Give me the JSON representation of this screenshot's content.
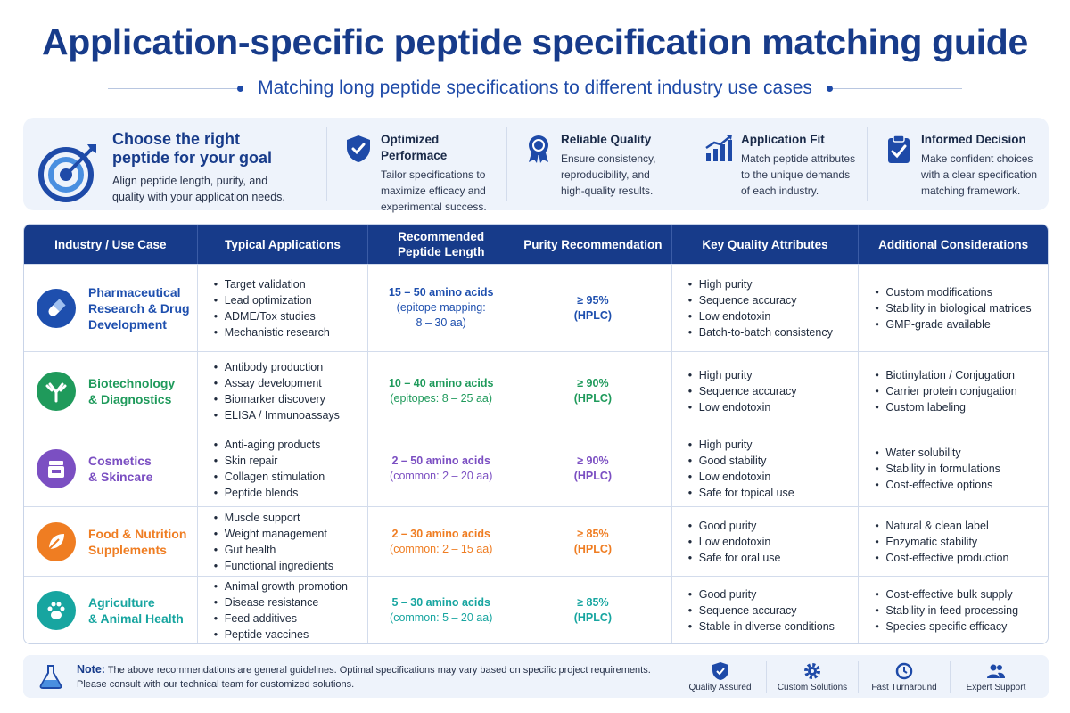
{
  "header": {
    "title": "Application-specific peptide specification matching guide",
    "subtitle": "Matching long peptide specifications to different industry use cases"
  },
  "intro": {
    "title_line1": "Choose the right",
    "title_line2": "peptide for your goal",
    "description_line1": "Align peptide length, purity, and",
    "description_line2": "quality with your application needs.",
    "icon": "target-icon",
    "features": [
      {
        "title": "Optimized Performace",
        "lines": [
          "Tailor specifications to",
          "maximize efficacy and",
          "experimental success."
        ],
        "icon": "shield-icon"
      },
      {
        "title": "Reliable Quality",
        "lines": [
          "Ensure consistency,",
          "reproducibility, and",
          "high-quality results."
        ],
        "icon": "award-ribbon-icon"
      },
      {
        "title": "Application Fit",
        "lines": [
          "Match peptide attributes",
          "to the unique demands",
          "of each industry."
        ],
        "icon": "bar-chart-icon"
      },
      {
        "title": "Informed Decision",
        "lines": [
          "Make confident choices",
          "with a clear specification",
          "matching framework."
        ],
        "icon": "clipboard-check-icon"
      }
    ]
  },
  "table": {
    "headers": [
      {
        "line1": "Industry / Use Case",
        "line2": ""
      },
      {
        "line1": "Typical Applications",
        "line2": ""
      },
      {
        "line1": "Recommended",
        "line2": "Peptide Length"
      },
      {
        "line1": "Purity Recommendation",
        "line2": ""
      },
      {
        "line1": "Key Quality Attributes",
        "line2": ""
      },
      {
        "line1": "Additional Considerations",
        "line2": ""
      }
    ],
    "rows": [
      {
        "name_line1": "Pharmaceutical",
        "name_line2": "Research & Drug",
        "name_line3": "Development",
        "color": "#1e4fae",
        "icon": "pill-icon",
        "applications": [
          "Target validation",
          "Lead optimization",
          "ADME/Tox studies",
          "Mechanistic research"
        ],
        "length": "15 – 50 amino acids",
        "length_note_line1": "(epitope mapping:",
        "length_note_line2": "8 – 30 aa)",
        "purity": "≥ 95%",
        "purity_method": "(HPLC)",
        "attributes": [
          "High purity",
          "Sequence accuracy",
          "Low endotoxin",
          "Batch-to-batch consistency"
        ],
        "considerations": [
          "Custom modifications",
          "Stability in biological matrices",
          "GMP-grade available"
        ]
      },
      {
        "name_line1": "Biotechnology",
        "name_line2": "& Diagnostics",
        "name_line3": "",
        "color": "#1f9a5b",
        "icon": "antibody-icon",
        "applications": [
          "Antibody production",
          "Assay development",
          "Biomarker discovery",
          "ELISA / Immunoassays"
        ],
        "length": "10 – 40 amino acids",
        "length_note_line1": "(epitopes: 8 – 25 aa)",
        "length_note_line2": "",
        "purity": "≥ 90%",
        "purity_method": "(HPLC)",
        "attributes": [
          "High purity",
          "Sequence accuracy",
          "Low endotoxin"
        ],
        "considerations": [
          "Biotinylation / Conjugation",
          "Carrier protein conjugation",
          "Custom labeling"
        ]
      },
      {
        "name_line1": "Cosmetics",
        "name_line2": "& Skincare",
        "name_line3": "",
        "color": "#7b4fc2",
        "icon": "cosmetic-jar-icon",
        "applications": [
          "Anti-aging products",
          "Skin repair",
          "Collagen stimulation",
          "Peptide blends"
        ],
        "length": "2 – 50 amino acids",
        "length_note_line1": "(common: 2 – 20 aa)",
        "length_note_line2": "",
        "purity": "≥ 90%",
        "purity_method": "(HPLC)",
        "attributes": [
          "High purity",
          "Good stability",
          "Low endotoxin",
          "Safe for topical use"
        ],
        "considerations": [
          "Water solubility",
          "Stability in formulations",
          "Cost-effective options"
        ]
      },
      {
        "name_line1": "Food & Nutrition",
        "name_line2": "Supplements",
        "name_line3": "",
        "color": "#ef7d22",
        "icon": "leaf-icon",
        "applications": [
          "Muscle support",
          "Weight management",
          "Gut health",
          "Functional ingredients"
        ],
        "length": "2 – 30 amino acids",
        "length_note_line1": "(common: 2 – 15 aa)",
        "length_note_line2": "",
        "purity": "≥ 85%",
        "purity_method": "(HPLC)",
        "attributes": [
          "Good purity",
          "Low endotoxin",
          "Safe for oral use"
        ],
        "considerations": [
          "Natural & clean label",
          "Enzymatic stability",
          "Cost-effective production"
        ]
      },
      {
        "name_line1": "Agriculture",
        "name_line2": "& Animal Health",
        "name_line3": "",
        "color": "#17a5a0",
        "icon": "paw-icon",
        "applications": [
          "Animal growth promotion",
          "Disease resistance",
          "Feed additives",
          "Peptide vaccines"
        ],
        "length": "5 – 30 amino acids",
        "length_note_line1": "(common: 5 – 20 aa)",
        "length_note_line2": "",
        "purity": "≥ 85%",
        "purity_method": "(HPLC)",
        "attributes": [
          "Good purity",
          "Sequence accuracy",
          "Stable in diverse conditions"
        ],
        "considerations": [
          "Cost-effective bulk supply",
          "Stability in feed processing",
          "Species-specific efficacy"
        ]
      }
    ]
  },
  "note": {
    "label": "Note:",
    "text_line1": "The above recommendations are general guidelines. Optimal specifications may vary based on specific project requirements.",
    "text_line2": "Please consult with our technical team for customized solutions.",
    "icon": "flask-icon",
    "badges": [
      {
        "label": "Quality Assured",
        "icon": "shield-check-icon"
      },
      {
        "label": "Custom Solutions",
        "icon": "gear-icon"
      },
      {
        "label": "Fast Turnaround",
        "icon": "clock-icon"
      },
      {
        "label": "Expert Support",
        "icon": "users-icon"
      }
    ]
  }
}
